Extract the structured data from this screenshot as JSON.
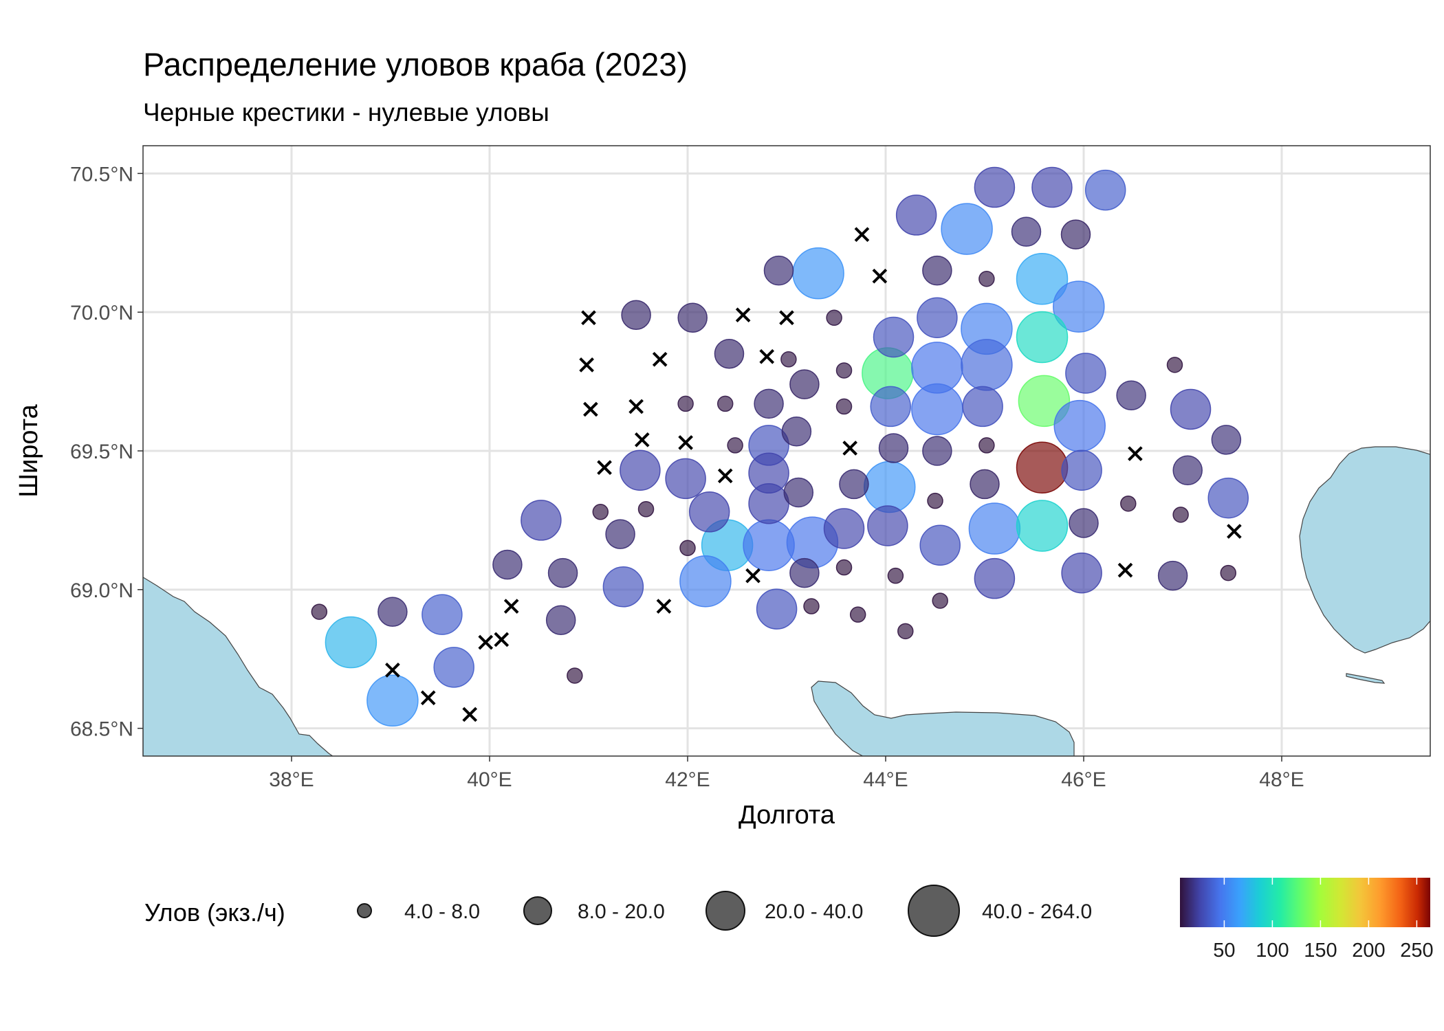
{
  "chart_data": {
    "type": "scatter",
    "title": "Распределение уловов краба (2023)",
    "subtitle": "Черные крестики - нулевые уловы",
    "xlabel": "Долгота",
    "ylabel": "Широта",
    "xlim": [
      36.5,
      49.5
    ],
    "ylim": [
      68.4,
      70.6
    ],
    "x_ticks": [
      38,
      40,
      42,
      44,
      46,
      48
    ],
    "x_tick_labels": [
      "38°E",
      "40°E",
      "42°E",
      "44°E",
      "46°E",
      "48°E"
    ],
    "y_ticks": [
      68.5,
      69.0,
      69.5,
      70.0,
      70.5
    ],
    "y_tick_labels": [
      "68.5°N",
      "69.0°N",
      "69.5°N",
      "70.0°N",
      "70.5°N"
    ],
    "grid": true,
    "legend_position": "bottom",
    "size_legend": {
      "title": "Улов (экз./ч)",
      "classes": [
        "4.0 - 8.0",
        "8.0 - 20.0",
        "20.0 - 40.0",
        "40.0 - 264.0"
      ]
    },
    "color_legend": {
      "colormap": "turbo",
      "range": [
        4,
        264
      ],
      "ticks": [
        50,
        100,
        150,
        200,
        250
      ],
      "tick_labels": [
        "50",
        "100",
        "150",
        "200",
        "250"
      ]
    },
    "land_color": "#add8e6",
    "catches": [
      {
        "lon": 45.1,
        "lat": 70.45,
        "v": 25
      },
      {
        "lon": 45.68,
        "lat": 70.45,
        "v": 25
      },
      {
        "lon": 46.22,
        "lat": 70.44,
        "v": 35
      },
      {
        "lon": 44.31,
        "lat": 70.35,
        "v": 25
      },
      {
        "lon": 44.82,
        "lat": 70.3,
        "v": 55
      },
      {
        "lon": 45.42,
        "lat": 70.29,
        "v": 15
      },
      {
        "lon": 45.92,
        "lat": 70.28,
        "v": 12
      },
      {
        "lon": 43.32,
        "lat": 70.14,
        "v": 60
      },
      {
        "lon": 45.58,
        "lat": 70.12,
        "v": 70
      },
      {
        "lon": 42.92,
        "lat": 70.15,
        "v": 14
      },
      {
        "lon": 44.52,
        "lat": 70.15,
        "v": 13
      },
      {
        "lon": 45.02,
        "lat": 70.12,
        "v": 6
      },
      {
        "lon": 45.95,
        "lat": 70.02,
        "v": 50
      },
      {
        "lon": 41.48,
        "lat": 69.99,
        "v": 13
      },
      {
        "lon": 42.05,
        "lat": 69.98,
        "v": 13
      },
      {
        "lon": 43.48,
        "lat": 69.98,
        "v": 6
      },
      {
        "lon": 44.52,
        "lat": 69.98,
        "v": 30
      },
      {
        "lon": 45.02,
        "lat": 69.94,
        "v": 50
      },
      {
        "lon": 44.08,
        "lat": 69.91,
        "v": 30
      },
      {
        "lon": 45.58,
        "lat": 69.91,
        "v": 95
      },
      {
        "lon": 42.42,
        "lat": 69.85,
        "v": 13
      },
      {
        "lon": 43.02,
        "lat": 69.83,
        "v": 6
      },
      {
        "lon": 44.02,
        "lat": 69.78,
        "v": 120
      },
      {
        "lon": 44.52,
        "lat": 69.8,
        "v": 45
      },
      {
        "lon": 45.02,
        "lat": 69.81,
        "v": 40
      },
      {
        "lon": 46.02,
        "lat": 69.78,
        "v": 30
      },
      {
        "lon": 46.92,
        "lat": 69.81,
        "v": 5
      },
      {
        "lon": 43.18,
        "lat": 69.74,
        "v": 12
      },
      {
        "lon": 43.58,
        "lat": 69.79,
        "v": 6
      },
      {
        "lon": 46.48,
        "lat": 69.7,
        "v": 15
      },
      {
        "lon": 41.98,
        "lat": 69.67,
        "v": 6
      },
      {
        "lon": 42.38,
        "lat": 69.67,
        "v": 6
      },
      {
        "lon": 42.82,
        "lat": 69.67,
        "v": 14
      },
      {
        "lon": 43.58,
        "lat": 69.66,
        "v": 6
      },
      {
        "lon": 44.05,
        "lat": 69.66,
        "v": 35
      },
      {
        "lon": 44.52,
        "lat": 69.65,
        "v": 45
      },
      {
        "lon": 44.98,
        "lat": 69.66,
        "v": 30
      },
      {
        "lon": 45.6,
        "lat": 69.68,
        "v": 130
      },
      {
        "lon": 47.08,
        "lat": 69.65,
        "v": 25
      },
      {
        "lon": 45.96,
        "lat": 69.59,
        "v": 45
      },
      {
        "lon": 43.1,
        "lat": 69.57,
        "v": 14
      },
      {
        "lon": 47.44,
        "lat": 69.54,
        "v": 15
      },
      {
        "lon": 42.48,
        "lat": 69.52,
        "v": 6
      },
      {
        "lon": 42.82,
        "lat": 69.52,
        "v": 30
      },
      {
        "lon": 44.08,
        "lat": 69.51,
        "v": 14
      },
      {
        "lon": 44.52,
        "lat": 69.5,
        "v": 14
      },
      {
        "lon": 45.02,
        "lat": 69.52,
        "v": 5
      },
      {
        "lon": 45.58,
        "lat": 69.44,
        "v": 264
      },
      {
        "lon": 41.52,
        "lat": 69.43,
        "v": 25
      },
      {
        "lon": 41.98,
        "lat": 69.4,
        "v": 25
      },
      {
        "lon": 42.82,
        "lat": 69.42,
        "v": 25
      },
      {
        "lon": 45.98,
        "lat": 69.43,
        "v": 30
      },
      {
        "lon": 47.05,
        "lat": 69.43,
        "v": 14
      },
      {
        "lon": 43.68,
        "lat": 69.38,
        "v": 14
      },
      {
        "lon": 44.04,
        "lat": 69.37,
        "v": 60
      },
      {
        "lon": 45.0,
        "lat": 69.38,
        "v": 12
      },
      {
        "lon": 43.12,
        "lat": 69.35,
        "v": 14
      },
      {
        "lon": 47.46,
        "lat": 69.33,
        "v": 30
      },
      {
        "lon": 41.12,
        "lat": 69.28,
        "v": 5
      },
      {
        "lon": 41.58,
        "lat": 69.29,
        "v": 5
      },
      {
        "lon": 42.22,
        "lat": 69.28,
        "v": 25
      },
      {
        "lon": 42.82,
        "lat": 69.31,
        "v": 25
      },
      {
        "lon": 44.5,
        "lat": 69.32,
        "v": 5
      },
      {
        "lon": 46.45,
        "lat": 69.31,
        "v": 5
      },
      {
        "lon": 46.98,
        "lat": 69.27,
        "v": 5
      },
      {
        "lon": 40.52,
        "lat": 69.25,
        "v": 25
      },
      {
        "lon": 43.58,
        "lat": 69.22,
        "v": 25
      },
      {
        "lon": 44.02,
        "lat": 69.23,
        "v": 25
      },
      {
        "lon": 45.1,
        "lat": 69.22,
        "v": 50
      },
      {
        "lon": 45.58,
        "lat": 69.23,
        "v": 90
      },
      {
        "lon": 46.0,
        "lat": 69.24,
        "v": 14
      },
      {
        "lon": 41.32,
        "lat": 69.2,
        "v": 14
      },
      {
        "lon": 42.4,
        "lat": 69.16,
        "v": 75
      },
      {
        "lon": 42.82,
        "lat": 69.16,
        "v": 45
      },
      {
        "lon": 43.26,
        "lat": 69.17,
        "v": 45
      },
      {
        "lon": 44.55,
        "lat": 69.16,
        "v": 30
      },
      {
        "lon": 42.0,
        "lat": 69.15,
        "v": 5
      },
      {
        "lon": 40.18,
        "lat": 69.09,
        "v": 14
      },
      {
        "lon": 40.74,
        "lat": 69.06,
        "v": 14
      },
      {
        "lon": 43.58,
        "lat": 69.08,
        "v": 5
      },
      {
        "lon": 43.18,
        "lat": 69.06,
        "v": 14
      },
      {
        "lon": 44.1,
        "lat": 69.05,
        "v": 5
      },
      {
        "lon": 45.1,
        "lat": 69.04,
        "v": 25
      },
      {
        "lon": 45.98,
        "lat": 69.06,
        "v": 25
      },
      {
        "lon": 46.9,
        "lat": 69.05,
        "v": 14
      },
      {
        "lon": 47.46,
        "lat": 69.06,
        "v": 5
      },
      {
        "lon": 41.35,
        "lat": 69.01,
        "v": 30
      },
      {
        "lon": 42.18,
        "lat": 69.03,
        "v": 50
      },
      {
        "lon": 42.9,
        "lat": 68.93,
        "v": 30
      },
      {
        "lon": 43.25,
        "lat": 68.94,
        "v": 5
      },
      {
        "lon": 43.72,
        "lat": 68.91,
        "v": 5
      },
      {
        "lon": 44.55,
        "lat": 68.96,
        "v": 5
      },
      {
        "lon": 44.2,
        "lat": 68.85,
        "v": 5
      },
      {
        "lon": 38.28,
        "lat": 68.92,
        "v": 5
      },
      {
        "lon": 39.02,
        "lat": 68.92,
        "v": 14
      },
      {
        "lon": 39.52,
        "lat": 68.91,
        "v": 35
      },
      {
        "lon": 38.6,
        "lat": 68.81,
        "v": 75
      },
      {
        "lon": 40.72,
        "lat": 68.89,
        "v": 14
      },
      {
        "lon": 39.64,
        "lat": 68.72,
        "v": 35
      },
      {
        "lon": 40.86,
        "lat": 68.69,
        "v": 5
      },
      {
        "lon": 39.02,
        "lat": 68.6,
        "v": 60
      }
    ],
    "zero_catches": [
      {
        "lon": 43.76,
        "lat": 70.28
      },
      {
        "lon": 43.94,
        "lat": 70.13
      },
      {
        "lon": 41.0,
        "lat": 69.98
      },
      {
        "lon": 42.56,
        "lat": 69.99
      },
      {
        "lon": 43.0,
        "lat": 69.98
      },
      {
        "lon": 40.98,
        "lat": 69.81
      },
      {
        "lon": 41.72,
        "lat": 69.83
      },
      {
        "lon": 42.8,
        "lat": 69.84
      },
      {
        "lon": 41.02,
        "lat": 69.65
      },
      {
        "lon": 41.48,
        "lat": 69.66
      },
      {
        "lon": 41.54,
        "lat": 69.54
      },
      {
        "lon": 41.98,
        "lat": 69.53
      },
      {
        "lon": 43.64,
        "lat": 69.51
      },
      {
        "lon": 46.52,
        "lat": 69.49
      },
      {
        "lon": 41.16,
        "lat": 69.44
      },
      {
        "lon": 42.38,
        "lat": 69.41
      },
      {
        "lon": 47.52,
        "lat": 69.21
      },
      {
        "lon": 46.42,
        "lat": 69.07
      },
      {
        "lon": 42.66,
        "lat": 69.05
      },
      {
        "lon": 40.22,
        "lat": 68.94
      },
      {
        "lon": 41.76,
        "lat": 68.94
      },
      {
        "lon": 39.96,
        "lat": 68.81
      },
      {
        "lon": 40.12,
        "lat": 68.82
      },
      {
        "lon": 39.02,
        "lat": 68.71
      },
      {
        "lon": 39.38,
        "lat": 68.61
      },
      {
        "lon": 39.8,
        "lat": 68.55
      }
    ]
  }
}
